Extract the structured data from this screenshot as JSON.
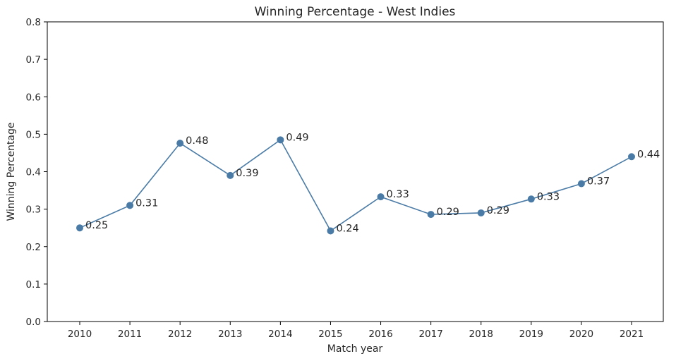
{
  "chart_data": {
    "type": "line",
    "title": "Winning Percentage - West Indies",
    "xlabel": "Match year",
    "ylabel": "Winning Percentage",
    "categories": [
      "2010",
      "2011",
      "2012",
      "2013",
      "2014",
      "2015",
      "2016",
      "2017",
      "2018",
      "2019",
      "2020",
      "2021"
    ],
    "series": [
      {
        "values": [
          0.25,
          0.31,
          0.476,
          0.39,
          0.485,
          0.242,
          0.333,
          0.286,
          0.29,
          0.327,
          0.368,
          0.44
        ],
        "labels": [
          "0.25",
          "0.31",
          "0.48",
          "0.39",
          "0.49",
          "0.24",
          "0.33",
          "0.29",
          "0.29",
          "0.33",
          "0.37",
          "0.44"
        ],
        "color": "#4a7ba6"
      }
    ],
    "ylim": [
      0,
      0.8
    ],
    "yticks": [
      "0.0",
      "0.1",
      "0.2",
      "0.3",
      "0.4",
      "0.5",
      "0.6",
      "0.7",
      "0.8"
    ],
    "grid": false,
    "legend": "none",
    "marker": "circle"
  }
}
